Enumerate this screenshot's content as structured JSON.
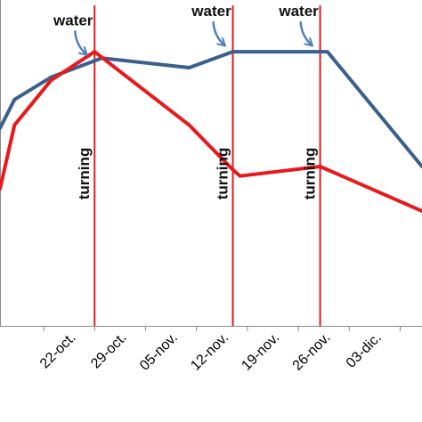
{
  "chart_data": {
    "type": "line",
    "x_axis": {
      "type": "date",
      "min": "2013-10-12",
      "max": "2013-12-09",
      "tick_labels": [
        "22-oct.",
        "29-oct.",
        "05-nov.",
        "12-nov.",
        "19-nov.",
        "26-nov.",
        "03-dic."
      ]
    },
    "grid": false,
    "legend": "none",
    "series": [
      {
        "color": "#3b5f8c",
        "points": [
          {
            "x": "2013-10-12",
            "y": 62
          },
          {
            "x": "2013-10-14",
            "y": 71
          },
          {
            "x": "2013-10-19",
            "y": 78
          },
          {
            "x": "2013-10-26",
            "y": 84
          },
          {
            "x": "2013-11-07",
            "y": 81
          },
          {
            "x": "2013-11-13",
            "y": 86
          },
          {
            "x": "2013-11-26",
            "y": 86
          },
          {
            "x": "2013-12-09",
            "y": 50
          }
        ]
      },
      {
        "color": "#e8191c",
        "points": [
          {
            "x": "2013-10-12",
            "y": 43
          },
          {
            "x": "2013-10-14",
            "y": 63
          },
          {
            "x": "2013-10-19",
            "y": 77
          },
          {
            "x": "2013-10-25",
            "y": 86
          },
          {
            "x": "2013-11-07",
            "y": 63
          },
          {
            "x": "2013-11-13",
            "y": 49
          },
          {
            "x": "2013-11-14",
            "y": 47
          },
          {
            "x": "2013-11-25",
            "y": 50
          },
          {
            "x": "2013-12-09",
            "y": 36
          }
        ]
      }
    ],
    "annotations": {
      "water": [
        {
          "label": "water",
          "x": "2013-10-25"
        },
        {
          "label": "water",
          "x": "2013-11-13"
        },
        {
          "label": "water",
          "x": "2013-11-25"
        }
      ],
      "turning": [
        {
          "label": "turning",
          "x": "2013-10-25"
        },
        {
          "label": "turning",
          "x": "2013-11-13"
        },
        {
          "label": "turning",
          "x": "2013-11-25"
        }
      ],
      "water_arrow_color": "#4f81bd",
      "turning_line_color": "#e8191c"
    }
  }
}
